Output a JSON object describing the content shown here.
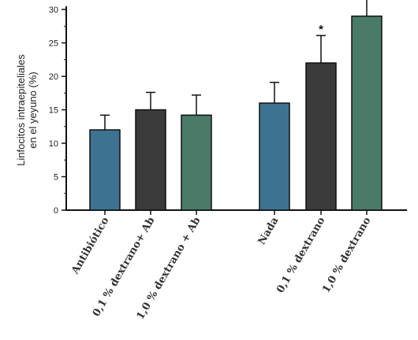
{
  "chart_data": {
    "type": "bar",
    "ylabel_lines": [
      "Linfocitos intraepiteliales",
      "en el yeyuno (%)"
    ],
    "ylim": [
      0,
      30
    ],
    "yticks": [
      0,
      5,
      10,
      15,
      20,
      25,
      30
    ],
    "ytick_labels": [
      "0",
      "5",
      "10",
      "15",
      "20",
      "25",
      "30"
    ],
    "categories": [
      "Antibiótico",
      "0,1 % dextrano+ Ab",
      "1,0 % dextrano + Ab",
      "Nada",
      "0,1 % dextrano",
      "1,0 % dextrano"
    ],
    "values": [
      12,
      15,
      14.2,
      16,
      22,
      29
    ],
    "errors": [
      2.2,
      2.6,
      3.0,
      3.1,
      4.1,
      2.6
    ],
    "significance": [
      "",
      "",
      "",
      "",
      "*",
      "*"
    ],
    "colors": [
      "#3d7391",
      "#3b3b3b",
      "#4a7a68",
      "#3d7391",
      "#3b3b3b",
      "#4a7a68"
    ],
    "grid": false,
    "legend": "none"
  }
}
